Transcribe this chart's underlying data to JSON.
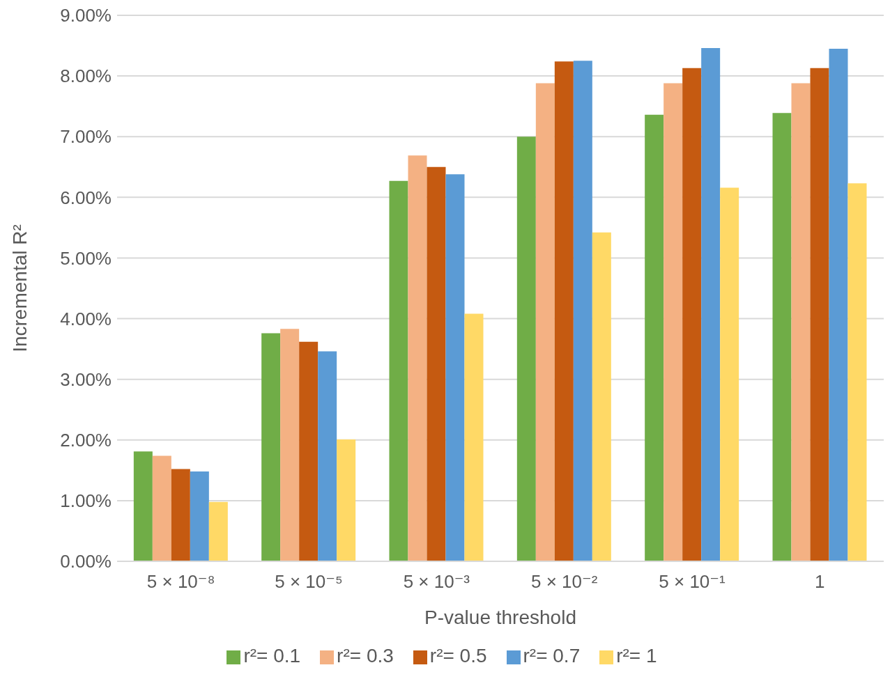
{
  "chart_data": {
    "type": "bar",
    "xlabel": "P-value threshold",
    "ylabel": "Incremental R²",
    "categories": [
      "5 × 10⁻⁸",
      "5 × 10⁻⁵",
      "5 × 10⁻³",
      "5 × 10⁻²",
      "5 × 10⁻¹",
      "1"
    ],
    "series": [
      {
        "name": "r²= 0.1",
        "color": "#70ad47",
        "values": [
          1.81,
          3.76,
          6.27,
          7.0,
          7.36,
          7.39
        ]
      },
      {
        "name": "r²= 0.3",
        "color": "#f4b183",
        "values": [
          1.74,
          3.83,
          6.69,
          7.88,
          7.88,
          7.88
        ]
      },
      {
        "name": "r²= 0.5",
        "color": "#c55a11",
        "values": [
          1.52,
          3.62,
          6.5,
          8.24,
          8.13,
          8.13
        ]
      },
      {
        "name": "r²= 0.7",
        "color": "#5b9bd5",
        "values": [
          1.48,
          3.46,
          6.38,
          8.25,
          8.46,
          8.45
        ]
      },
      {
        "name": "r²= 1",
        "color": "#ffd966",
        "values": [
          0.98,
          2.01,
          4.08,
          5.42,
          6.16,
          6.23
        ]
      }
    ],
    "ylim": [
      0,
      9
    ],
    "yticks": [
      {
        "value": 0,
        "label": "0.00%"
      },
      {
        "value": 1,
        "label": "1.00%"
      },
      {
        "value": 2,
        "label": "2.00%"
      },
      {
        "value": 3,
        "label": "3.00%"
      },
      {
        "value": 4,
        "label": "4.00%"
      },
      {
        "value": 5,
        "label": "5.00%"
      },
      {
        "value": 6,
        "label": "6.00%"
      },
      {
        "value": 7,
        "label": "7.00%"
      },
      {
        "value": 8,
        "label": "8.00%"
      },
      {
        "value": 9,
        "label": "9.00%"
      }
    ],
    "grid": "y",
    "legend": "bottom"
  }
}
